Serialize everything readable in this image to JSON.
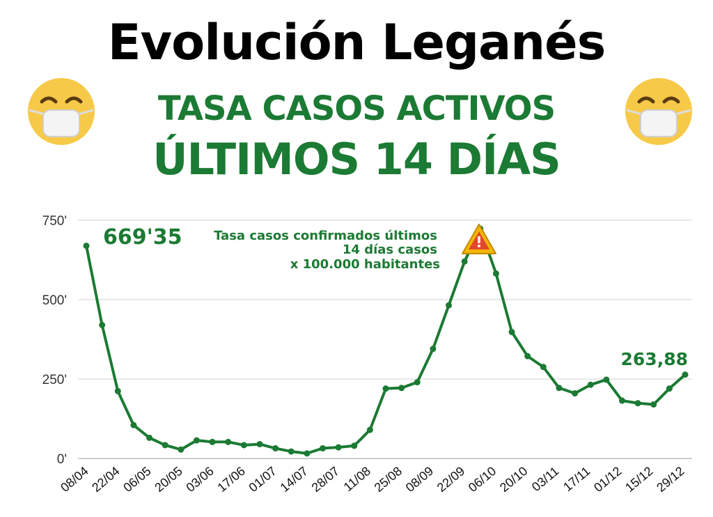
{
  "header": {
    "title": "Evolución Leganés",
    "subtitle_line1": "TASA CASOS ACTIVOS",
    "subtitle_line2": "ÚLTIMOS 14 DÍAS"
  },
  "decor": {
    "left_icon": "face-with-mask-icon",
    "right_icon": "face-with-mask-icon",
    "warning_icon": "warning-triangle-icon"
  },
  "colors": {
    "line": "#1b7a33",
    "title": "#000000",
    "accent": "#1b7a33",
    "grid": "#d0d0d0",
    "warning_fill": "#f2b705",
    "warning_inner": "#e2472c"
  },
  "chart_data": {
    "type": "line",
    "title": "",
    "xlabel": "",
    "ylabel": "",
    "ylim": [
      0,
      750
    ],
    "y_ticks": [
      {
        "value": 0,
        "label": "0'"
      },
      {
        "value": 250,
        "label": "250'"
      },
      {
        "value": 500,
        "label": "500'"
      },
      {
        "value": 750,
        "label": "750'"
      }
    ],
    "x_tick_labels": [
      "08/04",
      "22/04",
      "06/05",
      "20/05",
      "03/06",
      "17/06",
      "01/07",
      "14/07",
      "28/07",
      "11/08",
      "25/08",
      "08/09",
      "22/09",
      "06/10",
      "20/10",
      "03/11",
      "17/11",
      "01/12",
      "15/12",
      "29/12"
    ],
    "grid": true,
    "legend": "none",
    "annotations": [
      {
        "text": "669'35",
        "point_index": 0
      },
      {
        "text": "263,88",
        "point_index": 38
      },
      {
        "lines": [
          "Tasa casos confirmados últimos",
          "14 días  casos",
          "x 100.000 habitantes"
        ]
      }
    ],
    "series": [
      {
        "values": [
          669.35,
          420,
          212,
          105,
          65,
          42,
          28,
          57,
          52,
          52,
          42,
          45,
          32,
          22,
          16,
          32,
          35,
          40,
          90,
          220,
          222,
          240,
          345,
          482,
          620,
          723,
          582,
          398,
          322,
          288,
          222,
          205,
          232,
          248,
          182,
          174,
          170,
          220,
          263.88
        ]
      }
    ]
  }
}
